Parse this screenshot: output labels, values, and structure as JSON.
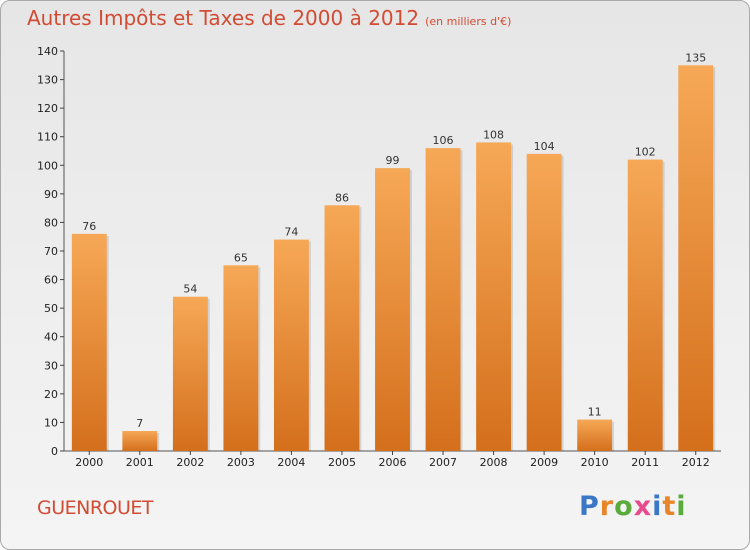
{
  "title": "Autres Impôts et Taxes de 2000 à 2012",
  "title_unit": "(en milliers d'€)",
  "town": "GUENROUET",
  "logo": {
    "text": "Proxiti",
    "letter_colors": [
      "#3a78c7",
      "#e8852a",
      "#5aab3c",
      "#e84a8e",
      "#3a78c7",
      "#e8852a",
      "#5aab3c"
    ]
  },
  "colors": {
    "bar_light": "#f6a856",
    "bar_dark": "#d46f1c",
    "axis": "#555555",
    "grid_tick": "#444444"
  },
  "chart_data": {
    "type": "bar",
    "title": "Autres Impôts et Taxes de 2000 à 2012",
    "categories": [
      "2000",
      "2001",
      "2002",
      "2003",
      "2004",
      "2005",
      "2006",
      "2007",
      "2008",
      "2009",
      "2010",
      "2011",
      "2012"
    ],
    "values": [
      76,
      7,
      54,
      65,
      74,
      86,
      99,
      106,
      108,
      104,
      11,
      102,
      135
    ],
    "ylim": [
      0,
      140
    ],
    "yticks": [
      0,
      10,
      20,
      30,
      40,
      50,
      60,
      70,
      80,
      90,
      100,
      110,
      120,
      130,
      140
    ],
    "xlabel": "",
    "ylabel": "",
    "grid": false,
    "data_labels": true
  }
}
